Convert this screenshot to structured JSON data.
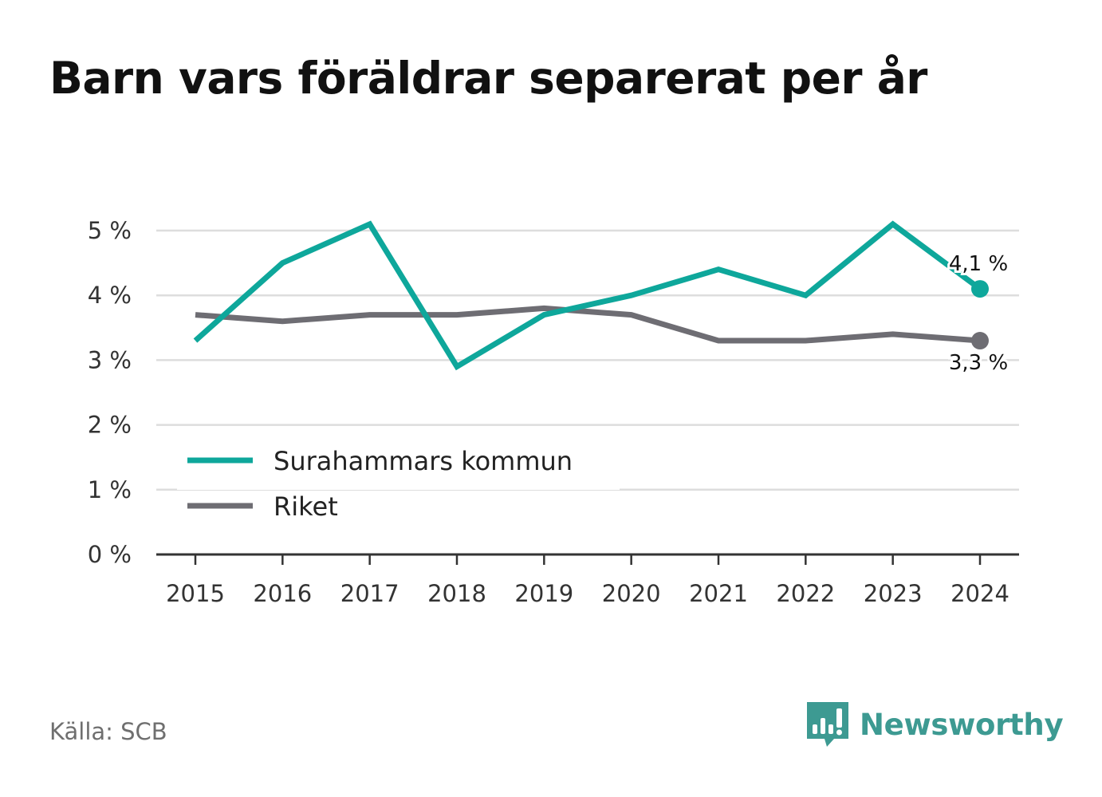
{
  "title": "Barn vars föräldrar separerat per år",
  "source": "Källa: SCB",
  "brand": {
    "name": "Newsworthy",
    "logo_icon": "newsworthy-chart-bubble-icon",
    "color": "#3d9a92"
  },
  "colors": {
    "series1": "#0ea79b",
    "series2": "#6e6d73",
    "grid": "#dddddd",
    "axis": "#333333"
  },
  "chart_data": {
    "type": "line",
    "title": "Barn vars föräldrar separerat per år",
    "x": [
      "2015",
      "2016",
      "2017",
      "2018",
      "2019",
      "2020",
      "2021",
      "2022",
      "2023",
      "2024"
    ],
    "ylim": [
      0,
      5
    ],
    "yticks": [
      0,
      1,
      2,
      3,
      4,
      5
    ],
    "ytick_labels": [
      "0 %",
      "1 %",
      "2 %",
      "3 %",
      "4 %",
      "5 %"
    ],
    "grid": true,
    "legend_position": "bottom-left",
    "series": [
      {
        "name": "Surahammars kommun",
        "color": "#0ea79b",
        "values": [
          3.3,
          4.5,
          5.1,
          2.9,
          3.7,
          4.0,
          4.4,
          4.0,
          5.1,
          4.1
        ],
        "end_label": "4,1 %"
      },
      {
        "name": "Riket",
        "color": "#6e6d73",
        "values": [
          3.7,
          3.6,
          3.7,
          3.7,
          3.8,
          3.7,
          3.3,
          3.3,
          3.4,
          3.3
        ],
        "end_label": "3,3 %"
      }
    ]
  }
}
